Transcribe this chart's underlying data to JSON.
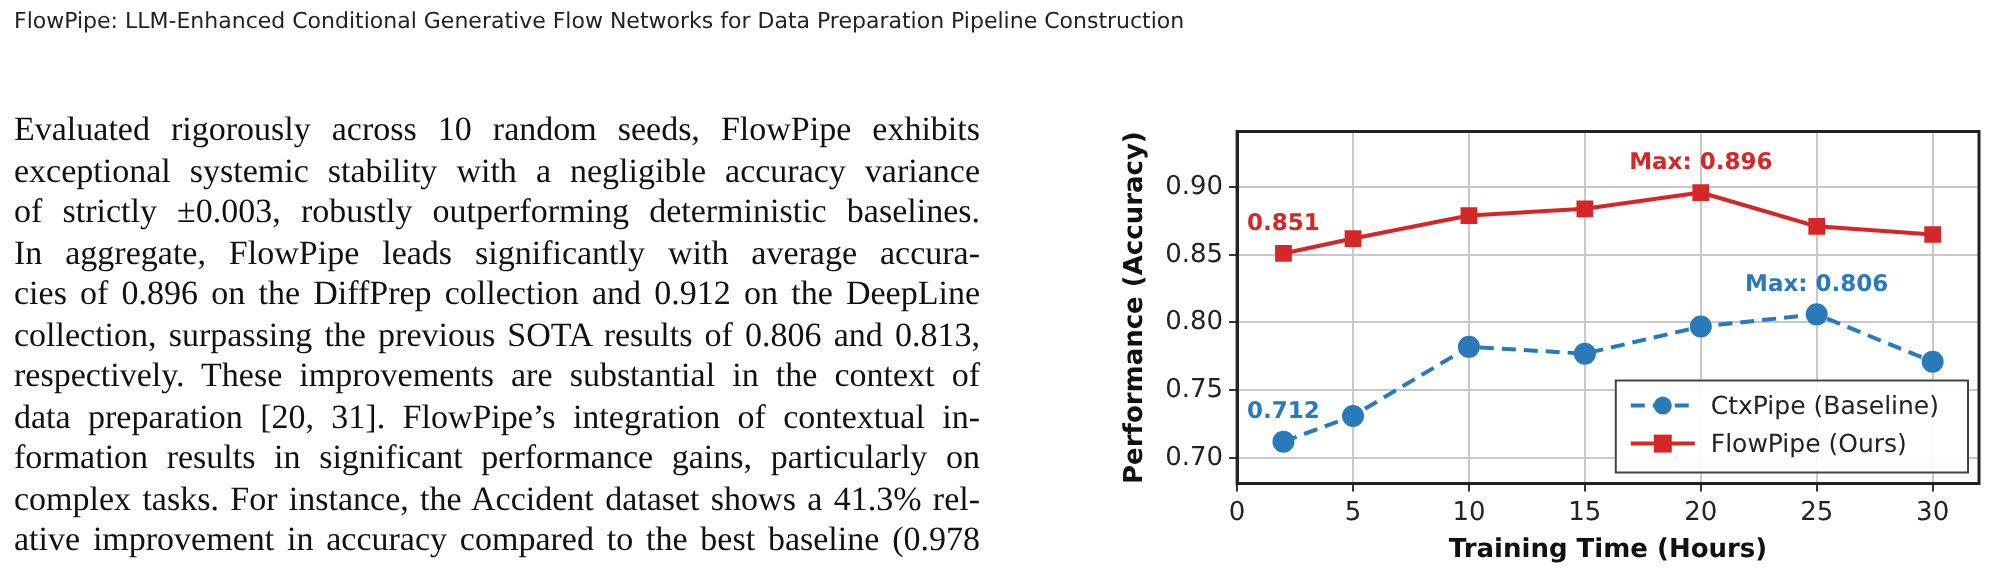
{
  "chart_data": {
    "type": "line",
    "xlabel": "Training Time (Hours)",
    "ylabel": "Performance (Accuracy)",
    "x": [
      2,
      5,
      10,
      15,
      20,
      25,
      30
    ],
    "series": [
      {
        "name": "CtxPipe (Baseline)",
        "color": "#2a7ab9",
        "values": [
          0.712,
          0.731,
          0.782,
          0.777,
          0.797,
          0.806,
          0.771
        ],
        "marker": "circle",
        "line_style": "dashed"
      },
      {
        "name": "FlowPipe (Ours)",
        "color": "#d62728",
        "values": [
          0.851,
          0.862,
          0.879,
          0.884,
          0.896,
          0.871,
          0.865
        ],
        "marker": "square",
        "line_style": "solid"
      }
    ],
    "xlim": [
      0,
      32
    ],
    "ylim": [
      0.681,
      0.941
    ],
    "xticks": [
      0,
      5,
      10,
      15,
      20,
      25,
      30
    ],
    "yticks": [
      {
        "value": 0.7,
        "label": "0.70"
      },
      {
        "value": 0.75,
        "label": "0.75"
      },
      {
        "value": 0.8,
        "label": "0.80"
      },
      {
        "value": 0.85,
        "label": "0.85"
      },
      {
        "value": 0.9,
        "label": "0.90"
      }
    ],
    "grid": true,
    "legend": "bottom right",
    "annotations": [
      "FlowPipe: LLM-Enhanced Conditional Generative Flow Networks for Data Preparation Pipeline Construction",
      "Evaluated rigorously across 10 random seeds, FlowPipe exhibits",
      "exceptional systemic stability with a negligible accuracy variance",
      "of strictly ±0.003, robustly outperforming deterministic baselines.",
      "In aggregate, FlowPipe leads significantly with average accura-",
      "cies of 0.896 on the DiffPrep collection and 0.912 on the DeepLine",
      "collection, surpassing the previous SOTA results of 0.806 and 0.813,",
      "respectively. These improvements are substantial in the context of",
      "data preparation [20, 31]. FlowPipe’s integration of contextual in-",
      "formation results in significant performance gains, particularly on",
      "complex tasks. For instance, the Accident dataset shows a 41.3% rel-",
      "ative improvement in accuracy compared to the best baseline (0.978",
      {
        "text": "0.851",
        "x": 2,
        "y": 0.851
      },
      {
        "text": "Max: 0.896",
        "x": 20,
        "y": 0.896
      },
      {
        "text": "0.712",
        "x": 2,
        "y": 0.712
      },
      {
        "text": "Max: 0.806",
        "x": 25,
        "y": 0.806
      }
    ]
  }
}
